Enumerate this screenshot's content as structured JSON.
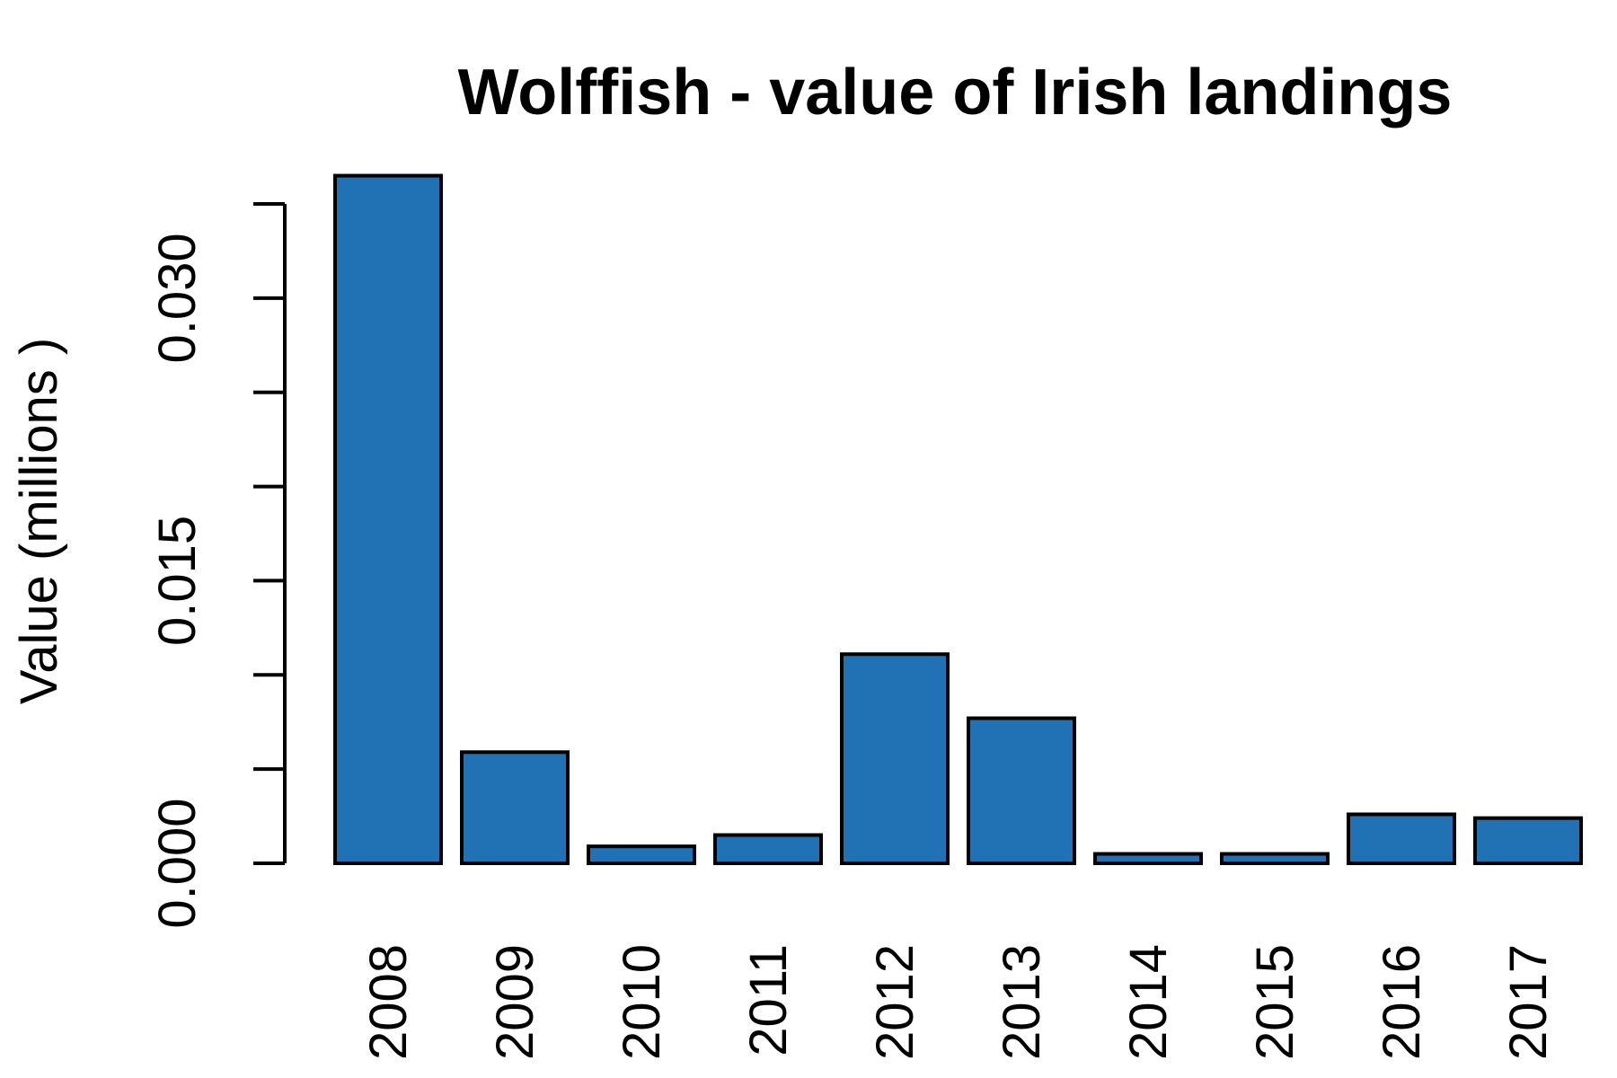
{
  "chart_data": {
    "type": "bar",
    "title": "Wolffish - value of Irish landings",
    "xlabel": "",
    "ylabel": "Value (millions )",
    "categories": [
      "2008",
      "2009",
      "2010",
      "2011",
      "2012",
      "2013",
      "2014",
      "2015",
      "2016",
      "2017"
    ],
    "values": [
      0.0365,
      0.0059,
      0.0009,
      0.0015,
      0.0111,
      0.0077,
      0.0005,
      0.0005,
      0.0026,
      0.0024
    ],
    "ylim": [
      0,
      0.035
    ],
    "yticks": [
      0.0,
      0.005,
      0.01,
      0.015,
      0.02,
      0.025,
      0.03,
      0.035
    ],
    "ytick_labels": [
      "0.000",
      "",
      "",
      "0.015",
      "",
      "",
      "0.030",
      ""
    ],
    "bar_color": "#2171b5",
    "grid": false,
    "legend": "none"
  }
}
